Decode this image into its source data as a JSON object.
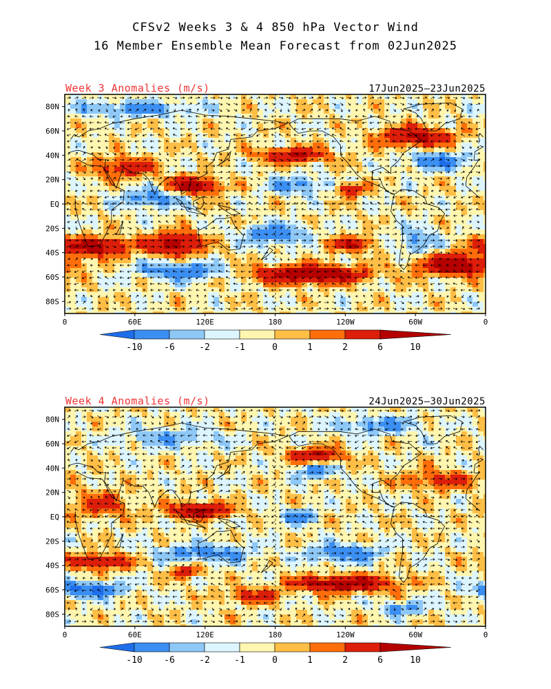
{
  "title": {
    "line1": "CFSv2 Weeks 3 & 4 850 hPa Vector Wind",
    "line2": "16 Member Ensemble Mean Forecast from 02Jun2025"
  },
  "palette": [
    "#1e6eea",
    "#3c8ff2",
    "#8ec8f7",
    "#dcf5ff",
    "#fff6b0",
    "#ffbe46",
    "#ff6e0a",
    "#dc1e0a",
    "#b40000"
  ],
  "colorbar_labels": [
    "-10",
    "-6",
    "-2",
    "-1",
    "0",
    "1",
    "2",
    "6",
    "10"
  ],
  "lat_labels": [
    "80N",
    "60N",
    "40N",
    "20N",
    "EQ",
    "20S",
    "40S",
    "60S",
    "80S"
  ],
  "lon_labels": [
    "0",
    "60E",
    "120E",
    "180",
    "120W",
    "60W",
    "0"
  ],
  "panels": [
    {
      "id": "week3",
      "title": "Week 3 Anomalies (m/s)",
      "dates": "17Jun2025–23Jun2025",
      "anomaly_fields": [
        {
          "lon": 50,
          "lat": 30,
          "amp": 2.0,
          "sx": 25,
          "sy": 8
        },
        {
          "lon": 110,
          "lat": 15,
          "amp": 3.0,
          "sx": 22,
          "sy": 7
        },
        {
          "lon": 195,
          "lat": 40,
          "amp": 2.5,
          "sx": 28,
          "sy": 6
        },
        {
          "lon": 245,
          "lat": 12,
          "amp": 2.5,
          "sx": 12,
          "sy": 5
        },
        {
          "lon": 300,
          "lat": 55,
          "amp": 2.5,
          "sx": 30,
          "sy": 8
        },
        {
          "lon": 25,
          "lat": -35,
          "amp": 3.0,
          "sx": 30,
          "sy": 7
        },
        {
          "lon": 95,
          "lat": -33,
          "amp": 3.0,
          "sx": 22,
          "sy": 9
        },
        {
          "lon": 210,
          "lat": -58,
          "amp": 3.5,
          "sx": 45,
          "sy": 7
        },
        {
          "lon": 335,
          "lat": -50,
          "amp": 3.5,
          "sx": 30,
          "sy": 8
        },
        {
          "lon": 245,
          "lat": -33,
          "amp": 2.0,
          "sx": 20,
          "sy": 6
        },
        {
          "lon": 180,
          "lat": -25,
          "amp": -2.0,
          "sx": 25,
          "sy": 8
        },
        {
          "lon": 75,
          "lat": 5,
          "amp": -1.8,
          "sx": 25,
          "sy": 8
        },
        {
          "lon": 320,
          "lat": 35,
          "amp": -2.0,
          "sx": 25,
          "sy": 7
        },
        {
          "lon": 100,
          "lat": -55,
          "amp": -2.0,
          "sx": 35,
          "sy": 7
        },
        {
          "lon": 60,
          "lat": 78,
          "amp": -1.5,
          "sx": 50,
          "sy": 6
        },
        {
          "lon": 200,
          "lat": 15,
          "amp": -1.5,
          "sx": 25,
          "sy": 7
        },
        {
          "lon": 300,
          "lat": -30,
          "amp": -1.5,
          "sx": 15,
          "sy": 10
        }
      ]
    },
    {
      "id": "week4",
      "title": "Week 4 Anomalies (m/s)",
      "dates": "24Jun2025–30Jun2025",
      "anomaly_fields": [
        {
          "lon": 215,
          "lat": 50,
          "amp": 2.5,
          "sx": 22,
          "sy": 6
        },
        {
          "lon": 115,
          "lat": 5,
          "amp": 3.0,
          "sx": 25,
          "sy": 6
        },
        {
          "lon": 30,
          "lat": -37,
          "amp": 2.5,
          "sx": 25,
          "sy": 6
        },
        {
          "lon": 240,
          "lat": -55,
          "amp": 3.5,
          "sx": 40,
          "sy": 6
        },
        {
          "lon": 105,
          "lat": -45,
          "amp": 2.0,
          "sx": 12,
          "sy": 5
        },
        {
          "lon": 320,
          "lat": 30,
          "amp": 1.5,
          "sx": 30,
          "sy": 8
        },
        {
          "lon": 30,
          "lat": 10,
          "amp": 1.5,
          "sx": 25,
          "sy": 10
        },
        {
          "lon": 160,
          "lat": -65,
          "amp": 1.5,
          "sx": 25,
          "sy": 6
        },
        {
          "lon": 20,
          "lat": -60,
          "amp": -2.5,
          "sx": 30,
          "sy": 6
        },
        {
          "lon": 120,
          "lat": -30,
          "amp": -1.8,
          "sx": 40,
          "sy": 7
        },
        {
          "lon": 240,
          "lat": -30,
          "amp": -2.0,
          "sx": 30,
          "sy": 7
        },
        {
          "lon": 200,
          "lat": 0,
          "amp": -1.8,
          "sx": 15,
          "sy": 6
        },
        {
          "lon": 215,
          "lat": 38,
          "amp": -2.0,
          "sx": 15,
          "sy": 6
        },
        {
          "lon": 270,
          "lat": 75,
          "amp": -1.5,
          "sx": 35,
          "sy": 7
        },
        {
          "lon": 290,
          "lat": -75,
          "amp": -1.5,
          "sx": 20,
          "sy": 5
        },
        {
          "lon": 90,
          "lat": 65,
          "amp": -1.2,
          "sx": 40,
          "sy": 8
        }
      ]
    }
  ]
}
